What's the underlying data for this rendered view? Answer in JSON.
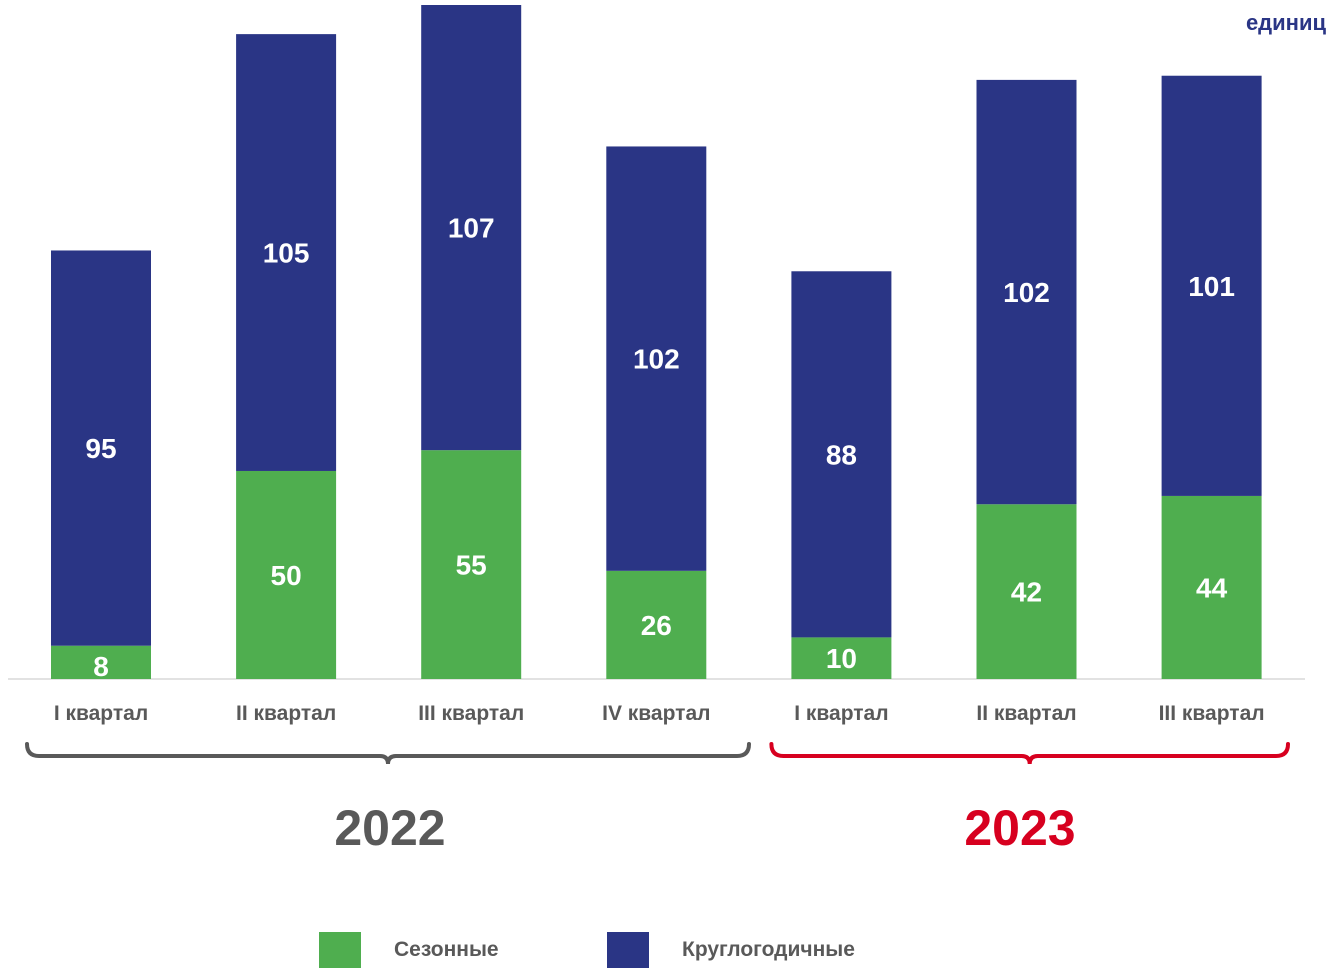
{
  "unit_label": "единиц",
  "colors": {
    "seasonal": "#4fae4f",
    "year_round": "#2a3585",
    "year_2022": "#595959",
    "year_2023": "#d7001f",
    "axis": "#d9d9d9",
    "bar_label": "#ffffff",
    "tick_label": "#595959"
  },
  "chart_data": {
    "type": "bar",
    "stacked": true,
    "categories": [
      "I квартал",
      "II квартал",
      "III квартал",
      "IV квартал",
      "I квартал",
      "II квартал",
      "III квартал"
    ],
    "groups": [
      {
        "label": "2022",
        "categories": [
          0,
          1,
          2,
          3
        ]
      },
      {
        "label": "2023",
        "categories": [
          4,
          5,
          6
        ]
      }
    ],
    "series": [
      {
        "name": "Сезонные",
        "values": [
          8,
          50,
          55,
          26,
          10,
          42,
          44
        ]
      },
      {
        "name": "Круглогодичные",
        "values": [
          95,
          105,
          107,
          102,
          88,
          102,
          101
        ]
      }
    ],
    "ylim": [
      0,
      162
    ],
    "grid": false,
    "legend_position": "bottom"
  },
  "legend": {
    "seasonal_label": "Сезонные",
    "year_round_label": "Круглогодичные"
  }
}
